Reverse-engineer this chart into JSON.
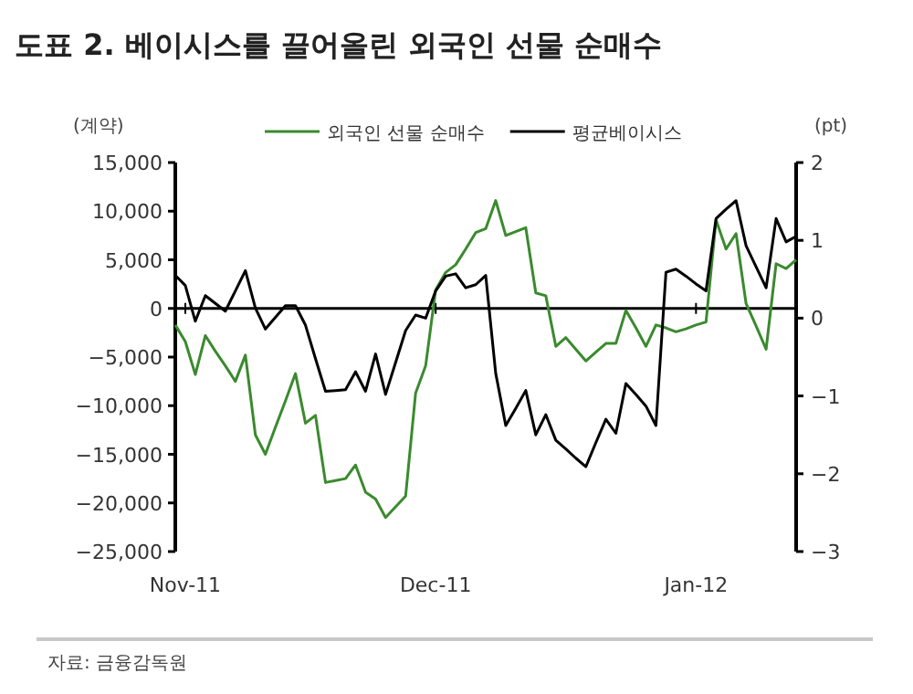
{
  "chart_data": {
    "type": "line",
    "title": "도표 2. 베이시스를 끌어올린 외국인 선물 순매수",
    "ylabel": "(계약)",
    "y2label": "(pt)",
    "annotations": [
      "자료: 금융감독원"
    ],
    "legend": "top",
    "grid": false,
    "categories": [
      null,
      "Nov-11",
      null,
      null,
      null,
      null,
      null,
      null,
      null,
      null,
      null,
      null,
      null,
      null,
      null,
      null,
      null,
      null,
      null,
      null,
      null,
      null,
      null,
      null,
      null,
      null,
      "Dec-11",
      null,
      null,
      null,
      null,
      null,
      null,
      null,
      null,
      null,
      null,
      null,
      null,
      null,
      null,
      null,
      null,
      null,
      null,
      null,
      null,
      null,
      null,
      null,
      null,
      null,
      "Jan-12",
      null,
      null,
      null,
      null,
      null,
      null,
      null,
      null,
      null,
      null
    ],
    "ylim": [
      -25000,
      15000
    ],
    "yticks": [
      {
        "value": -25000,
        "label": "−25,000"
      },
      {
        "value": -20000,
        "label": "−20,000"
      },
      {
        "value": -15000,
        "label": "−15,000"
      },
      {
        "value": -10000,
        "label": "−10,000"
      },
      {
        "value": -5000,
        "label": "−5,000"
      },
      {
        "value": 0,
        "label": "0"
      },
      {
        "value": 5000,
        "label": "5,000"
      },
      {
        "value": 10000,
        "label": "10,000"
      },
      {
        "value": 15000,
        "label": "15,000"
      }
    ],
    "y2lim": [
      -3,
      2
    ],
    "y2ticks": [
      {
        "value": -3,
        "label": "−3"
      },
      {
        "value": -2,
        "label": "−2"
      },
      {
        "value": -1,
        "label": "−1"
      },
      0,
      1,
      2
    ],
    "ref_lines": [
      {
        "axis": "y",
        "value": 0,
        "color": "#000000"
      }
    ],
    "series": [
      {
        "name": "외국인 선물 순매수",
        "color": "#3a8a2e",
        "values": [
          -1700,
          -3400,
          -6800,
          -2800,
          -4400,
          -5900,
          -7500,
          -4800,
          -13000,
          -15000,
          -12200,
          -9500,
          -6700,
          -11800,
          -11000,
          -17900,
          -17700,
          -17500,
          -16100,
          -18900,
          -19600,
          -21500,
          -20400,
          -19300,
          -8700,
          -5900,
          1900,
          3700,
          4500,
          6100,
          7800,
          8200,
          11100,
          7500,
          7900,
          8300,
          1600,
          1300,
          -3900,
          -3000,
          -4200,
          -5400,
          -4500,
          -3600,
          -3600,
          -200,
          -2000,
          -3900,
          -1700,
          -2000,
          -2400,
          -2100,
          -1700,
          -1400,
          9100,
          6100,
          7700,
          500,
          -1800,
          -4200,
          4600,
          4100,
          5000
        ]
      },
      {
        "name": "평균베이시스",
        "color": "#000000",
        "axis": "y2",
        "values": [
          0.55,
          0.42,
          -0.04,
          0.29,
          0.19,
          0.09,
          0.35,
          0.61,
          0.13,
          -0.14,
          0.01,
          0.16,
          0.16,
          -0.09,
          -0.52,
          -0.94,
          -0.93,
          -0.92,
          -0.69,
          -0.94,
          -0.46,
          -0.98,
          -0.57,
          -0.16,
          0.04,
          0,
          0.35,
          0.54,
          0.57,
          0.39,
          0.43,
          0.55,
          -0.71,
          -1.38,
          -1.16,
          -0.93,
          -1.5,
          -1.24,
          -1.57,
          -1.68,
          -1.8,
          -1.91,
          -1.6,
          -1.3,
          -1.48,
          -0.84,
          -0.98,
          -1.13,
          -1.38,
          0.59,
          0.63,
          0.54,
          0.44,
          0.35,
          1.28,
          1.4,
          1.51,
          0.93,
          0.66,
          0.39,
          1.28,
          0.98,
          1.05
        ]
      }
    ]
  }
}
